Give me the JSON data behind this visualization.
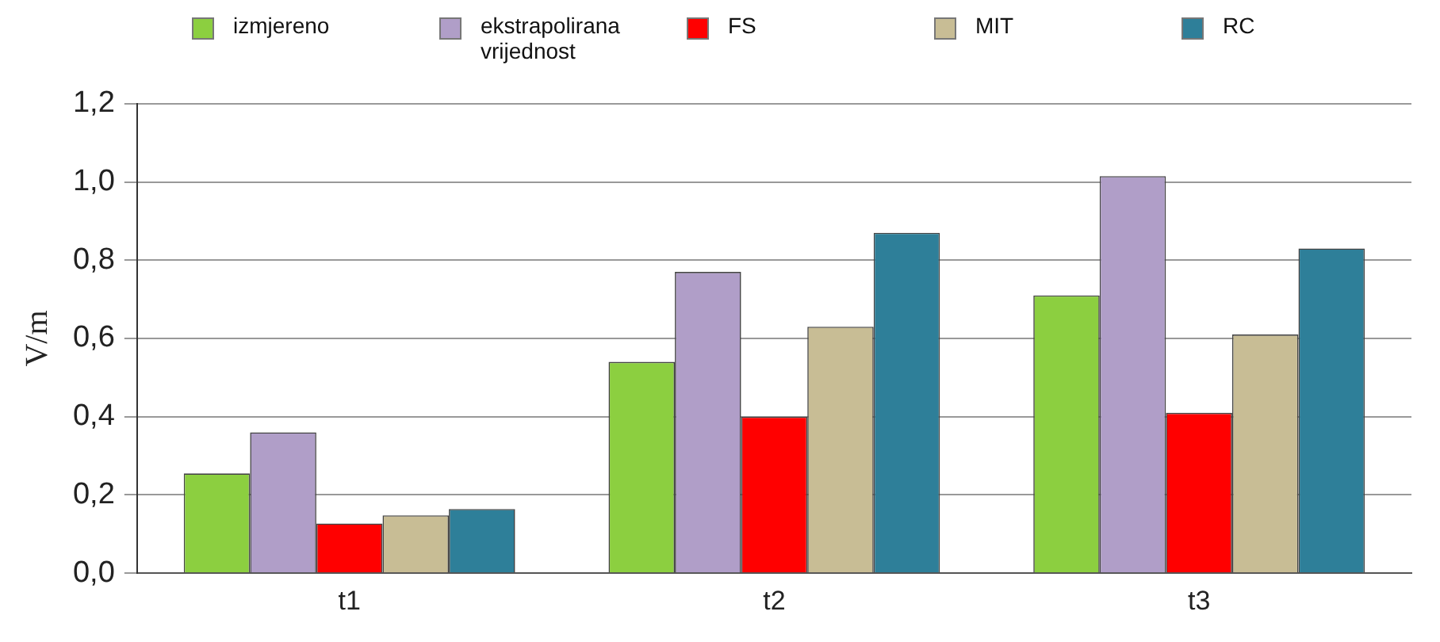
{
  "chart_data": {
    "type": "bar",
    "ylabel": "V/m",
    "categories": [
      "t1",
      "t2",
      "t3"
    ],
    "series": [
      {
        "name": "izmjereno",
        "color": "#8ccf40",
        "values": [
          0.255,
          0.54,
          0.71
        ]
      },
      {
        "name": "ekstrapolirana vrijednost",
        "color": "#b09ec8",
        "values": [
          0.36,
          0.77,
          1.015
        ]
      },
      {
        "name": "FS",
        "color": "#ff0000",
        "values": [
          0.127,
          0.4,
          0.41
        ]
      },
      {
        "name": "MIT",
        "color": "#c8bd95",
        "values": [
          0.148,
          0.63,
          0.61
        ]
      },
      {
        "name": "RC",
        "color": "#2e7f99",
        "values": [
          0.164,
          0.87,
          0.83
        ]
      }
    ],
    "ylim": [
      0,
      1.2
    ],
    "yticks": [
      {
        "value": 0,
        "label": "0,0"
      },
      {
        "value": 0.2,
        "label": "0,2"
      },
      {
        "value": 0.4,
        "label": "0,4"
      },
      {
        "value": 0.6,
        "label": "0,6"
      },
      {
        "value": 0.8,
        "label": "0,8"
      },
      {
        "value": 1,
        "label": "1,0"
      },
      {
        "value": 1.2,
        "label": "1,2"
      }
    ],
    "grid": "y",
    "legend": "top"
  }
}
